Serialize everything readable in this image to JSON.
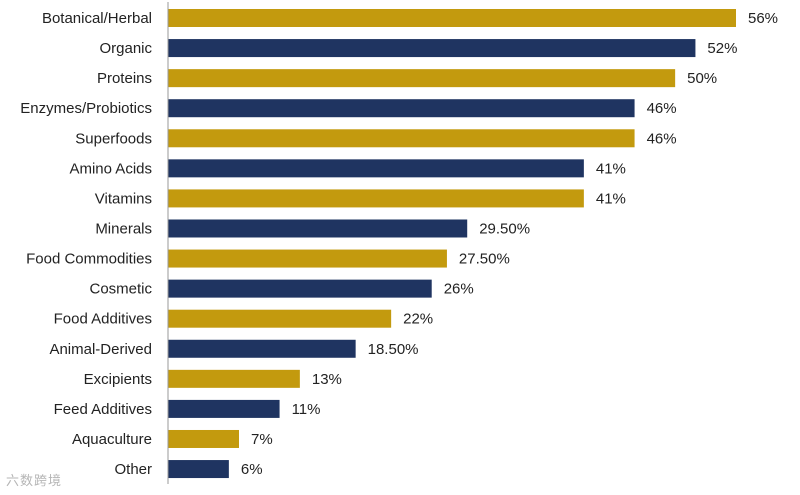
{
  "chart_data": {
    "type": "bar",
    "orientation": "horizontal",
    "title": "",
    "xlabel": "",
    "ylabel": "",
    "xlim": [
      0,
      60
    ],
    "grid": false,
    "legend": "none",
    "categories": [
      "Botanical/Herbal",
      "Organic",
      "Proteins",
      "Enzymes/Probiotics",
      "Superfoods",
      "Amino Acids",
      "Vitamins",
      "Minerals",
      "Food Commodities",
      "Cosmetic",
      "Food Additives",
      "Animal-Derived",
      "Excipients",
      "Feed Additives",
      "Aquaculture",
      "Other"
    ],
    "values": [
      56,
      52,
      50,
      46,
      46,
      41,
      41,
      29.5,
      27.5,
      26,
      22,
      18.5,
      13,
      11,
      7,
      6
    ],
    "value_labels": [
      "56%",
      "52%",
      "50%",
      "46%",
      "46%",
      "41%",
      "41%",
      "29.50%",
      "27.50%",
      "26%",
      "22%",
      "18.50%",
      "13%",
      "11%",
      "7%",
      "6%"
    ],
    "bar_colors": [
      "#C39A0E",
      "#1F3461",
      "#C39A0E",
      "#1F3461",
      "#C39A0E",
      "#1F3461",
      "#C39A0E",
      "#1F3461",
      "#C39A0E",
      "#1F3461",
      "#C39A0E",
      "#1F3461",
      "#C39A0E",
      "#1F3461",
      "#C39A0E",
      "#1F3461"
    ]
  },
  "colors": {
    "gold": "#C39A0E",
    "navy": "#1F3461",
    "axis": "#999999",
    "text": "#222222"
  },
  "watermark": {
    "text": "六数跨境"
  }
}
